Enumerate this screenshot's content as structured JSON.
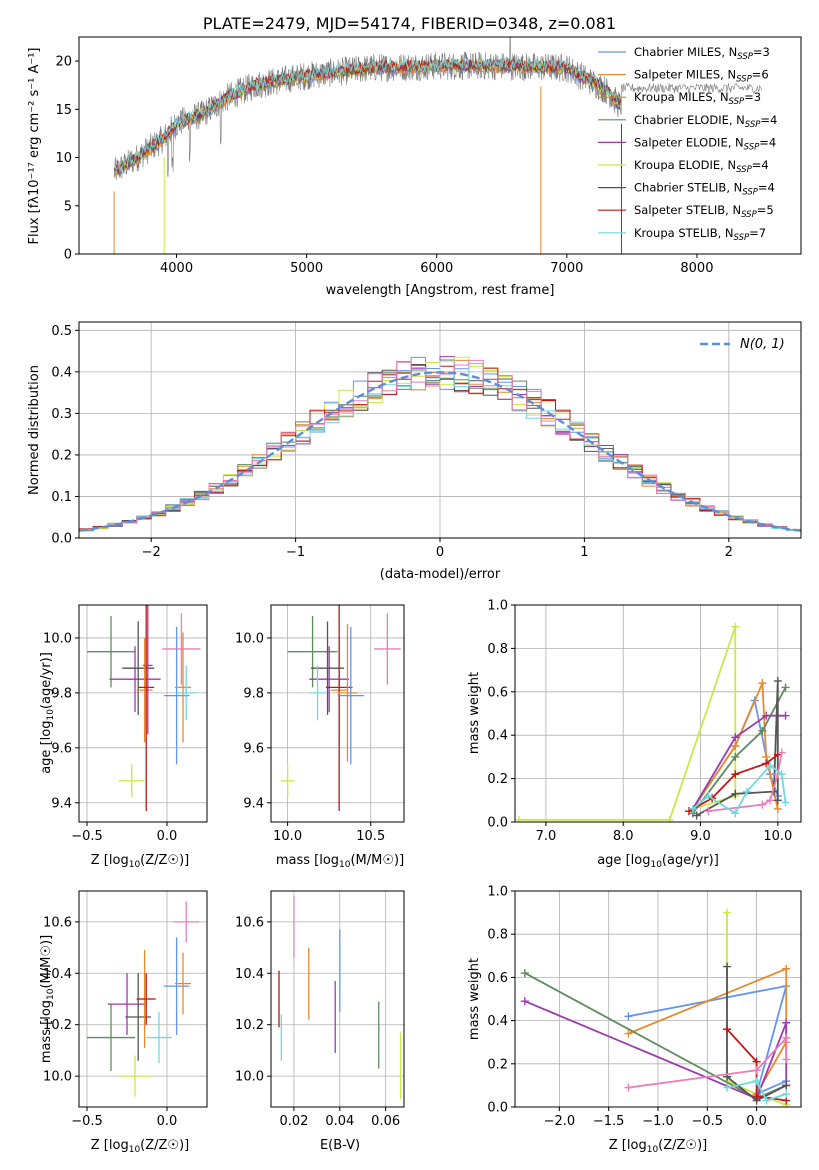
{
  "figure_title": "PLATE=2479, MJD=54174, FIBERID=0348, z=0.081",
  "colors": {
    "Chabrier MILES": "#6495ED",
    "Salpeter MILES": "#E8882F",
    "Kroupa MILES": "#D4872A",
    "Chabrier ELODIE": "#5E8C5E",
    "Salpeter ELODIE": "#9C3AB0",
    "Kroupa ELODIE": "#CDE64A",
    "Chabrier STELIB": "#555555",
    "Salpeter STELIB": "#C01818",
    "Kroupa STELIB": "#72D8DE",
    "pink": "#E87FB8"
  },
  "chart_data": [
    {
      "id": "spectrum",
      "type": "line",
      "xlabel": "wavelength [Angstrom, rest frame]",
      "ylabel": "Flux [fλ10⁻¹⁷ erg cm⁻² s⁻¹ A⁻¹]",
      "xlim": [
        3250,
        8800
      ],
      "ylim": [
        0,
        22.5
      ],
      "xticks": [
        4000,
        5000,
        6000,
        7000,
        8000
      ],
      "yticks": [
        0,
        5,
        10,
        15,
        20
      ],
      "legend_position": "right",
      "legend": [
        {
          "label": "Chabrier MILES, N",
          "sub": "SSP",
          "n": "=3",
          "color": "#6495ED"
        },
        {
          "label": "Salpeter MILES, N",
          "sub": "SSP",
          "n": "=6",
          "color": "#E8882F"
        },
        {
          "label": "Kroupa MILES, N",
          "sub": "SSP",
          "n": "=3",
          "color": "#D4872A"
        },
        {
          "label": "Chabrier ELODIE, N",
          "sub": "SSP",
          "n": "=4",
          "color": "#5E8C5E"
        },
        {
          "label": "Salpeter ELODIE, N",
          "sub": "SSP",
          "n": "=4",
          "color": "#9C3AB0"
        },
        {
          "label": "Kroupa ELODIE, N",
          "sub": "SSP",
          "n": "=4",
          "color": "#CDE64A"
        },
        {
          "label": "Chabrier STELIB, N",
          "sub": "SSP",
          "n": "=4",
          "color": "#555555"
        },
        {
          "label": "Salpeter STELIB, N",
          "sub": "SSP",
          "n": "=5",
          "color": "#C01818"
        },
        {
          "label": "Kroupa STELIB, N",
          "sub": "SSP",
          "n": "=7",
          "color": "#72D8DE"
        }
      ],
      "continuum": [
        [
          3520,
          8.5
        ],
        [
          3700,
          10
        ],
        [
          3900,
          12
        ],
        [
          4000,
          13.5
        ],
        [
          4200,
          14.5
        ],
        [
          4400,
          16.3
        ],
        [
          4600,
          17.5
        ],
        [
          4800,
          18
        ],
        [
          5000,
          18.5
        ],
        [
          5200,
          18.8
        ],
        [
          5500,
          19.3
        ],
        [
          6000,
          19.5
        ],
        [
          6500,
          19.5
        ],
        [
          7000,
          19.3
        ],
        [
          7300,
          17
        ],
        [
          7400,
          15.5
        ]
      ],
      "spectrum_range": [
        3520,
        7420
      ],
      "red_extension_range": [
        7420,
        8500
      ],
      "red_extension_level": 17.2
    },
    {
      "id": "residuals",
      "type": "histogram",
      "xlabel": "(data-model)/error",
      "ylabel": "Normed distribution",
      "xlim": [
        -2.5,
        2.5
      ],
      "ylim": [
        0,
        0.52
      ],
      "xticks": [
        -2,
        -1,
        0,
        1,
        2
      ],
      "yticks": [
        0,
        0.1,
        0.2,
        0.3,
        0.4,
        0.5
      ],
      "legend": "Ν(0, 1)",
      "legend_color": "#5B8FD9",
      "bin_width": 0.1,
      "bin_start": -2.5
    },
    {
      "id": "age_vs_Z",
      "type": "errorbar",
      "xlabel": "Z [log10(Z/Z☉)]",
      "ylabel": "age  [log10(age/yr)]",
      "xlim": [
        -0.55,
        0.25
      ],
      "ylim": [
        9.33,
        10.12
      ],
      "xticks": [
        -0.5,
        0.0
      ],
      "yticks": [
        9.4,
        9.6,
        9.8,
        10.0
      ],
      "points": [
        {
          "x": -0.35,
          "y": 9.95,
          "xe": 0.15,
          "ye": 0.13,
          "c": "#5E8C5E"
        },
        {
          "x": -0.2,
          "y": 9.85,
          "xe": 0.16,
          "ye": 0.12,
          "c": "#9C3AB0"
        },
        {
          "x": -0.18,
          "y": 9.89,
          "xe": 0.1,
          "ye": 0.17,
          "c": "#555555"
        },
        {
          "x": -0.14,
          "y": 9.81,
          "xe": 0.05,
          "ye": 0.19,
          "c": "#E8882F"
        },
        {
          "x": -0.13,
          "y": 9.82,
          "xe": 0.05,
          "ye": 0.45,
          "c": "#C01818"
        },
        {
          "x": -0.12,
          "y": 9.9,
          "xe": 0.03,
          "ye": 0.25,
          "c": "#9C3AB0"
        },
        {
          "x": 0.06,
          "y": 9.79,
          "xe": 0.08,
          "ye": 0.25,
          "c": "#6495ED"
        },
        {
          "x": 0.1,
          "y": 9.82,
          "xe": 0.05,
          "ye": 0.2,
          "c": "#E8882F"
        },
        {
          "x": 0.12,
          "y": 9.8,
          "xe": 0.06,
          "ye": 0.1,
          "c": "#72D8DE"
        },
        {
          "x": 0.09,
          "y": 9.96,
          "xe": 0.12,
          "ye": 0.13,
          "c": "#E87FB8"
        },
        {
          "x": -0.22,
          "y": 9.48,
          "xe": 0.08,
          "ye": 0.06,
          "c": "#CDE64A"
        }
      ]
    },
    {
      "id": "age_vs_mass",
      "type": "errorbar",
      "xlabel": "mass [log10(M/M☉)]",
      "ylabel": "",
      "xlim": [
        9.9,
        10.7
      ],
      "ylim": [
        9.33,
        10.12
      ],
      "xticks": [
        10.0,
        10.5
      ],
      "yticks": [
        9.4,
        9.6,
        9.8,
        10.0
      ],
      "points": [
        {
          "x": 10.15,
          "y": 9.95,
          "xe": 0.15,
          "ye": 0.13,
          "c": "#5E8C5E"
        },
        {
          "x": 10.25,
          "y": 9.85,
          "xe": 0.12,
          "ye": 0.12,
          "c": "#9C3AB0"
        },
        {
          "x": 10.24,
          "y": 9.89,
          "xe": 0.1,
          "ye": 0.17,
          "c": "#555555"
        },
        {
          "x": 10.31,
          "y": 9.81,
          "xe": 0.05,
          "ye": 0.19,
          "c": "#E8882F"
        },
        {
          "x": 10.31,
          "y": 9.82,
          "xe": 0.08,
          "ye": 0.45,
          "c": "#C01818"
        },
        {
          "x": 10.36,
          "y": 9.8,
          "xe": 0.06,
          "ye": 0.25,
          "c": "#E8882F"
        },
        {
          "x": 10.38,
          "y": 9.79,
          "xe": 0.08,
          "ye": 0.25,
          "c": "#6495ED"
        },
        {
          "x": 10.18,
          "y": 9.8,
          "xe": 0.05,
          "ye": 0.1,
          "c": "#72D8DE"
        },
        {
          "x": 10.6,
          "y": 9.96,
          "xe": 0.08,
          "ye": 0.13,
          "c": "#E87FB8"
        },
        {
          "x": 10.0,
          "y": 9.48,
          "xe": 0.04,
          "ye": 0.06,
          "c": "#CDE64A"
        }
      ]
    },
    {
      "id": "mass_weight_vs_age",
      "type": "line",
      "xlabel": "age  [log10(age/yr)]",
      "ylabel": "mass weight",
      "xlim": [
        6.6,
        10.3
      ],
      "ylim": [
        0,
        1.0
      ],
      "xticks": [
        7,
        8,
        9,
        10
      ],
      "yticks": [
        0.0,
        0.2,
        0.4,
        0.6,
        0.8,
        1.0
      ],
      "series": [
        {
          "c": "#CDE64A",
          "x": [
            6.65,
            8.6,
            9.45,
            9.45,
            8.9
          ],
          "y": [
            0.01,
            0.01,
            0.9,
            0.12,
            0.06
          ]
        },
        {
          "c": "#6495ED",
          "x": [
            8.9,
            9.45,
            9.7,
            9.9,
            10.0
          ],
          "y": [
            0.06,
            0.35,
            0.56,
            0.22,
            0.12
          ]
        },
        {
          "c": "#E8882F",
          "x": [
            8.9,
            9.45,
            9.8,
            9.85,
            10.0
          ],
          "y": [
            0.06,
            0.35,
            0.64,
            0.3,
            0.06
          ]
        },
        {
          "c": "#5E8C5E",
          "x": [
            8.9,
            9.45,
            9.8,
            10.1
          ],
          "y": [
            0.04,
            0.3,
            0.42,
            0.62
          ]
        },
        {
          "c": "#9C3AB0",
          "x": [
            8.9,
            9.45,
            9.85,
            10.1
          ],
          "y": [
            0.06,
            0.39,
            0.49,
            0.49
          ]
        },
        {
          "c": "#555555",
          "x": [
            8.95,
            9.45,
            9.95,
            10.0,
            10.0
          ],
          "y": [
            0.03,
            0.13,
            0.14,
            0.65,
            0.1
          ]
        },
        {
          "c": "#C01818",
          "x": [
            8.85,
            9.15,
            9.45,
            9.85,
            10.0
          ],
          "y": [
            0.05,
            0.11,
            0.22,
            0.27,
            0.31
          ]
        },
        {
          "c": "#E87FB8",
          "x": [
            9.1,
            9.8,
            9.9,
            10.0,
            10.05
          ],
          "y": [
            0.05,
            0.08,
            0.1,
            0.22,
            0.32
          ]
        },
        {
          "c": "#72D8DE",
          "x": [
            8.9,
            9.1,
            9.45,
            9.6,
            9.9,
            10.05,
            10.1
          ],
          "y": [
            0.06,
            0.12,
            0.04,
            0.14,
            0.26,
            0.22,
            0.09
          ]
        }
      ]
    },
    {
      "id": "mass_vs_Z",
      "type": "errorbar",
      "xlabel": "Z [log10(Z/Z☉)]",
      "ylabel": "mass [log10(M/M☉)]",
      "xlim": [
        -0.55,
        0.25
      ],
      "ylim": [
        9.88,
        10.72
      ],
      "xticks": [
        -0.5,
        0.0
      ],
      "yticks": [
        10.0,
        10.2,
        10.4,
        10.6
      ],
      "points": [
        {
          "x": -0.35,
          "y": 10.15,
          "xe": 0.15,
          "ye": 0.13,
          "c": "#5E8C5E"
        },
        {
          "x": -0.25,
          "y": 10.28,
          "xe": 0.12,
          "ye": 0.12,
          "c": "#9C3AB0"
        },
        {
          "x": -0.18,
          "y": 10.23,
          "xe": 0.08,
          "ye": 0.17,
          "c": "#555555"
        },
        {
          "x": -0.14,
          "y": 10.3,
          "xe": 0.05,
          "ye": 0.19,
          "c": "#E8882F"
        },
        {
          "x": -0.13,
          "y": 10.3,
          "xe": 0.06,
          "ye": 0.1,
          "c": "#C01818"
        },
        {
          "x": -0.05,
          "y": 10.15,
          "xe": 0.08,
          "ye": 0.1,
          "c": "#72D8DE"
        },
        {
          "x": 0.06,
          "y": 10.35,
          "xe": 0.08,
          "ye": 0.19,
          "c": "#6495ED"
        },
        {
          "x": 0.1,
          "y": 10.36,
          "xe": 0.05,
          "ye": 0.12,
          "c": "#E8882F"
        },
        {
          "x": 0.12,
          "y": 10.6,
          "xe": 0.08,
          "ye": 0.08,
          "c": "#E87FB8"
        },
        {
          "x": -0.2,
          "y": 10.0,
          "xe": 0.1,
          "ye": 0.08,
          "c": "#CDE64A"
        }
      ]
    },
    {
      "id": "mass_vs_EBV",
      "type": "errorbar",
      "xlabel": "E(B-V)",
      "ylabel": "",
      "xlim": [
        0.01,
        0.068
      ],
      "ylim": [
        9.88,
        10.72
      ],
      "xticks": [
        0.02,
        0.04,
        0.06
      ],
      "yticks": [
        10.0,
        10.2,
        10.4,
        10.6
      ],
      "points": [
        {
          "x": 0.0135,
          "y": 10.3,
          "ye": 0.11,
          "c": "#C01818"
        },
        {
          "x": 0.0145,
          "y": 10.15,
          "ye": 0.09,
          "c": "#72D8DE"
        },
        {
          "x": 0.02,
          "y": 10.58,
          "ye": 0.12,
          "c": "#E87FB8"
        },
        {
          "x": 0.0265,
          "y": 10.36,
          "ye": 0.14,
          "c": "#E8882F"
        },
        {
          "x": 0.038,
          "y": 10.23,
          "ye": 0.14,
          "c": "#9C3AB0"
        },
        {
          "x": 0.04,
          "y": 10.41,
          "ye": 0.16,
          "c": "#6495ED"
        },
        {
          "x": 0.057,
          "y": 10.16,
          "ye": 0.13,
          "c": "#5E8C5E"
        },
        {
          "x": 0.0665,
          "y": 10.04,
          "ye": 0.13,
          "c": "#CDE64A"
        }
      ]
    },
    {
      "id": "mass_weight_vs_Z",
      "type": "line",
      "xlabel": "Z [log10(Z/Z☉)]",
      "ylabel": "mass weight",
      "xlim": [
        -2.45,
        0.45
      ],
      "ylim": [
        0,
        1.0
      ],
      "xticks": [
        -2.0,
        -1.5,
        -1.0,
        -0.5,
        0.0
      ],
      "yticks": [
        0.0,
        0.2,
        0.4,
        0.6,
        0.8,
        1.0
      ],
      "series": [
        {
          "c": "#CDE64A",
          "x": [
            -0.3,
            -0.3,
            0.0,
            0.3
          ],
          "y": [
            0.9,
            0.12,
            0.06,
            0.01
          ]
        },
        {
          "c": "#6495ED",
          "x": [
            -1.3,
            0.3,
            0.0,
            0.3
          ],
          "y": [
            0.42,
            0.56,
            0.06,
            0.12
          ]
        },
        {
          "c": "#E8882F",
          "x": [
            -1.3,
            0.3,
            0.3,
            0.0
          ],
          "y": [
            0.34,
            0.64,
            0.3,
            0.06
          ]
        },
        {
          "c": "#5E8C5E",
          "x": [
            -2.35,
            0.0,
            0.3
          ],
          "y": [
            0.62,
            0.04,
            0.1
          ]
        },
        {
          "c": "#9C3AB0",
          "x": [
            -2.35,
            0.0,
            0.3,
            0.3
          ],
          "y": [
            0.49,
            0.04,
            0.39,
            0.1
          ]
        },
        {
          "c": "#555555",
          "x": [
            -0.3,
            -0.3,
            0.0,
            0.3
          ],
          "y": [
            0.65,
            0.14,
            0.03,
            0.1
          ]
        },
        {
          "c": "#C01818",
          "x": [
            -0.3,
            0.0,
            0.0,
            0.3
          ],
          "y": [
            0.36,
            0.21,
            0.05,
            0.03
          ]
        },
        {
          "c": "#E87FB8",
          "x": [
            -1.3,
            0.0,
            0.3,
            0.3
          ],
          "y": [
            0.09,
            0.17,
            0.32,
            0.22
          ]
        },
        {
          "c": "#72D8DE",
          "x": [
            -0.3,
            0.0,
            0.1,
            0.3
          ],
          "y": [
            0.09,
            0.12,
            0.03,
            0.06
          ]
        }
      ]
    }
  ]
}
